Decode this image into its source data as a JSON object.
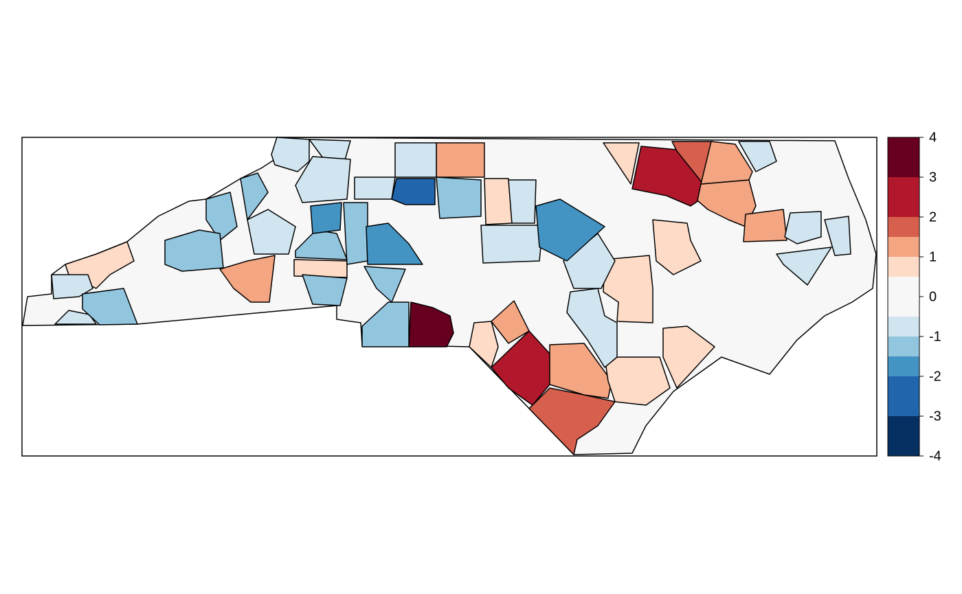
{
  "chart_data": {
    "type": "choropleth",
    "lim": [
      -4,
      4
    ],
    "ticks": [
      -4,
      -3,
      -2,
      -1,
      0,
      1,
      2,
      3,
      4
    ],
    "breaks": [
      -4,
      -3,
      -2,
      -1.5,
      -1,
      -0.5,
      0.5,
      1,
      1.5,
      2,
      3,
      4
    ],
    "colors": [
      "#053061",
      "#2166AC",
      "#4393C3",
      "#92C5DE",
      "#D1E5F0",
      "#F7F7F7",
      "#FDDBC7",
      "#F4A582",
      "#D6604D",
      "#B2182B",
      "#67001F"
    ],
    "region_values": [
      3.5,
      2.5,
      2.5,
      1.75,
      1.75,
      1.25,
      1.25,
      1.25,
      1.25,
      1.25,
      1.25,
      1.25,
      0.75,
      0.75,
      0.75,
      0.75,
      0.75,
      0.75,
      0.75,
      0.75,
      0.75,
      -0.75,
      -0.75,
      -0.75,
      -0.75,
      -0.75,
      -0.75,
      -0.75,
      -0.75,
      -0.75,
      -0.75,
      -0.75,
      -0.75,
      -0.75,
      -0.75,
      -0.75,
      -0.75,
      -1.25,
      -1.25,
      -1.25,
      -1.25,
      -1.25,
      -1.25,
      -1.25,
      -1.25,
      -1.25,
      -1.25,
      -1.75,
      -1.75,
      -1.75,
      -2.5
    ]
  }
}
